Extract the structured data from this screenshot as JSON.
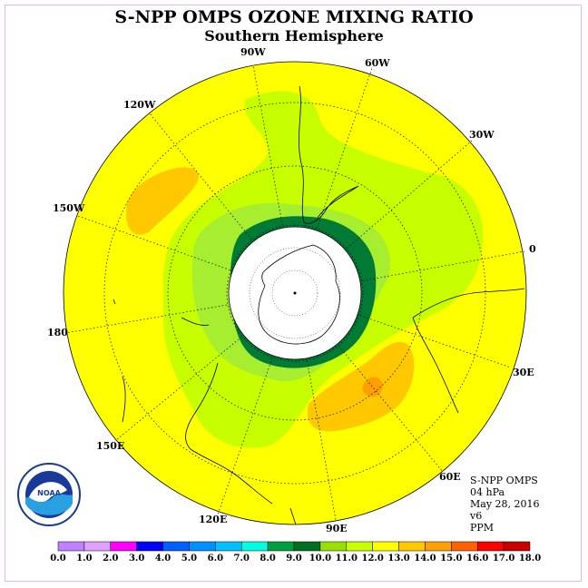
{
  "title": "S-NPP OMPS OZONE MIXING RATIO",
  "subtitle": "Southern Hemisphere",
  "longitude_labels": [
    "90W",
    "60W",
    "30W",
    "0",
    "30E",
    "60E",
    "90E",
    "120E",
    "150E",
    "180",
    "150W",
    "120W"
  ],
  "info": {
    "instrument": "S-NPP OMPS",
    "level": "04 hPa",
    "date": "May 28, 2016",
    "version": "v6",
    "units": "PPM"
  },
  "logo_text": "NOAA",
  "colorbar": {
    "ticks": [
      "0.0",
      "1.0",
      "2.0",
      "3.0",
      "4.0",
      "5.0",
      "6.0",
      "7.0",
      "8.0",
      "9.0",
      "10.0",
      "11.0",
      "12.0",
      "13.0",
      "14.0",
      "15.0",
      "16.0",
      "17.0",
      "18.0"
    ],
    "colors": [
      "#c080ff",
      "#e0a0ff",
      "#ff00ff",
      "#0000ff",
      "#0060ff",
      "#0090ff",
      "#00c0ff",
      "#00ffe0",
      "#00a040",
      "#007020",
      "#98e000",
      "#c8ff00",
      "#ffff00",
      "#ffc800",
      "#ffa000",
      "#ff6000",
      "#ff0000",
      "#c80000",
      "#8b5a3c"
    ]
  },
  "colors": {
    "yellow": "#ffff00",
    "light_green": "#c8ff00",
    "green": "#a0e840",
    "dark_green": "#008040",
    "deep_green": "#006020",
    "orange": "#ffc800",
    "dark_orange": "#ffa000"
  }
}
